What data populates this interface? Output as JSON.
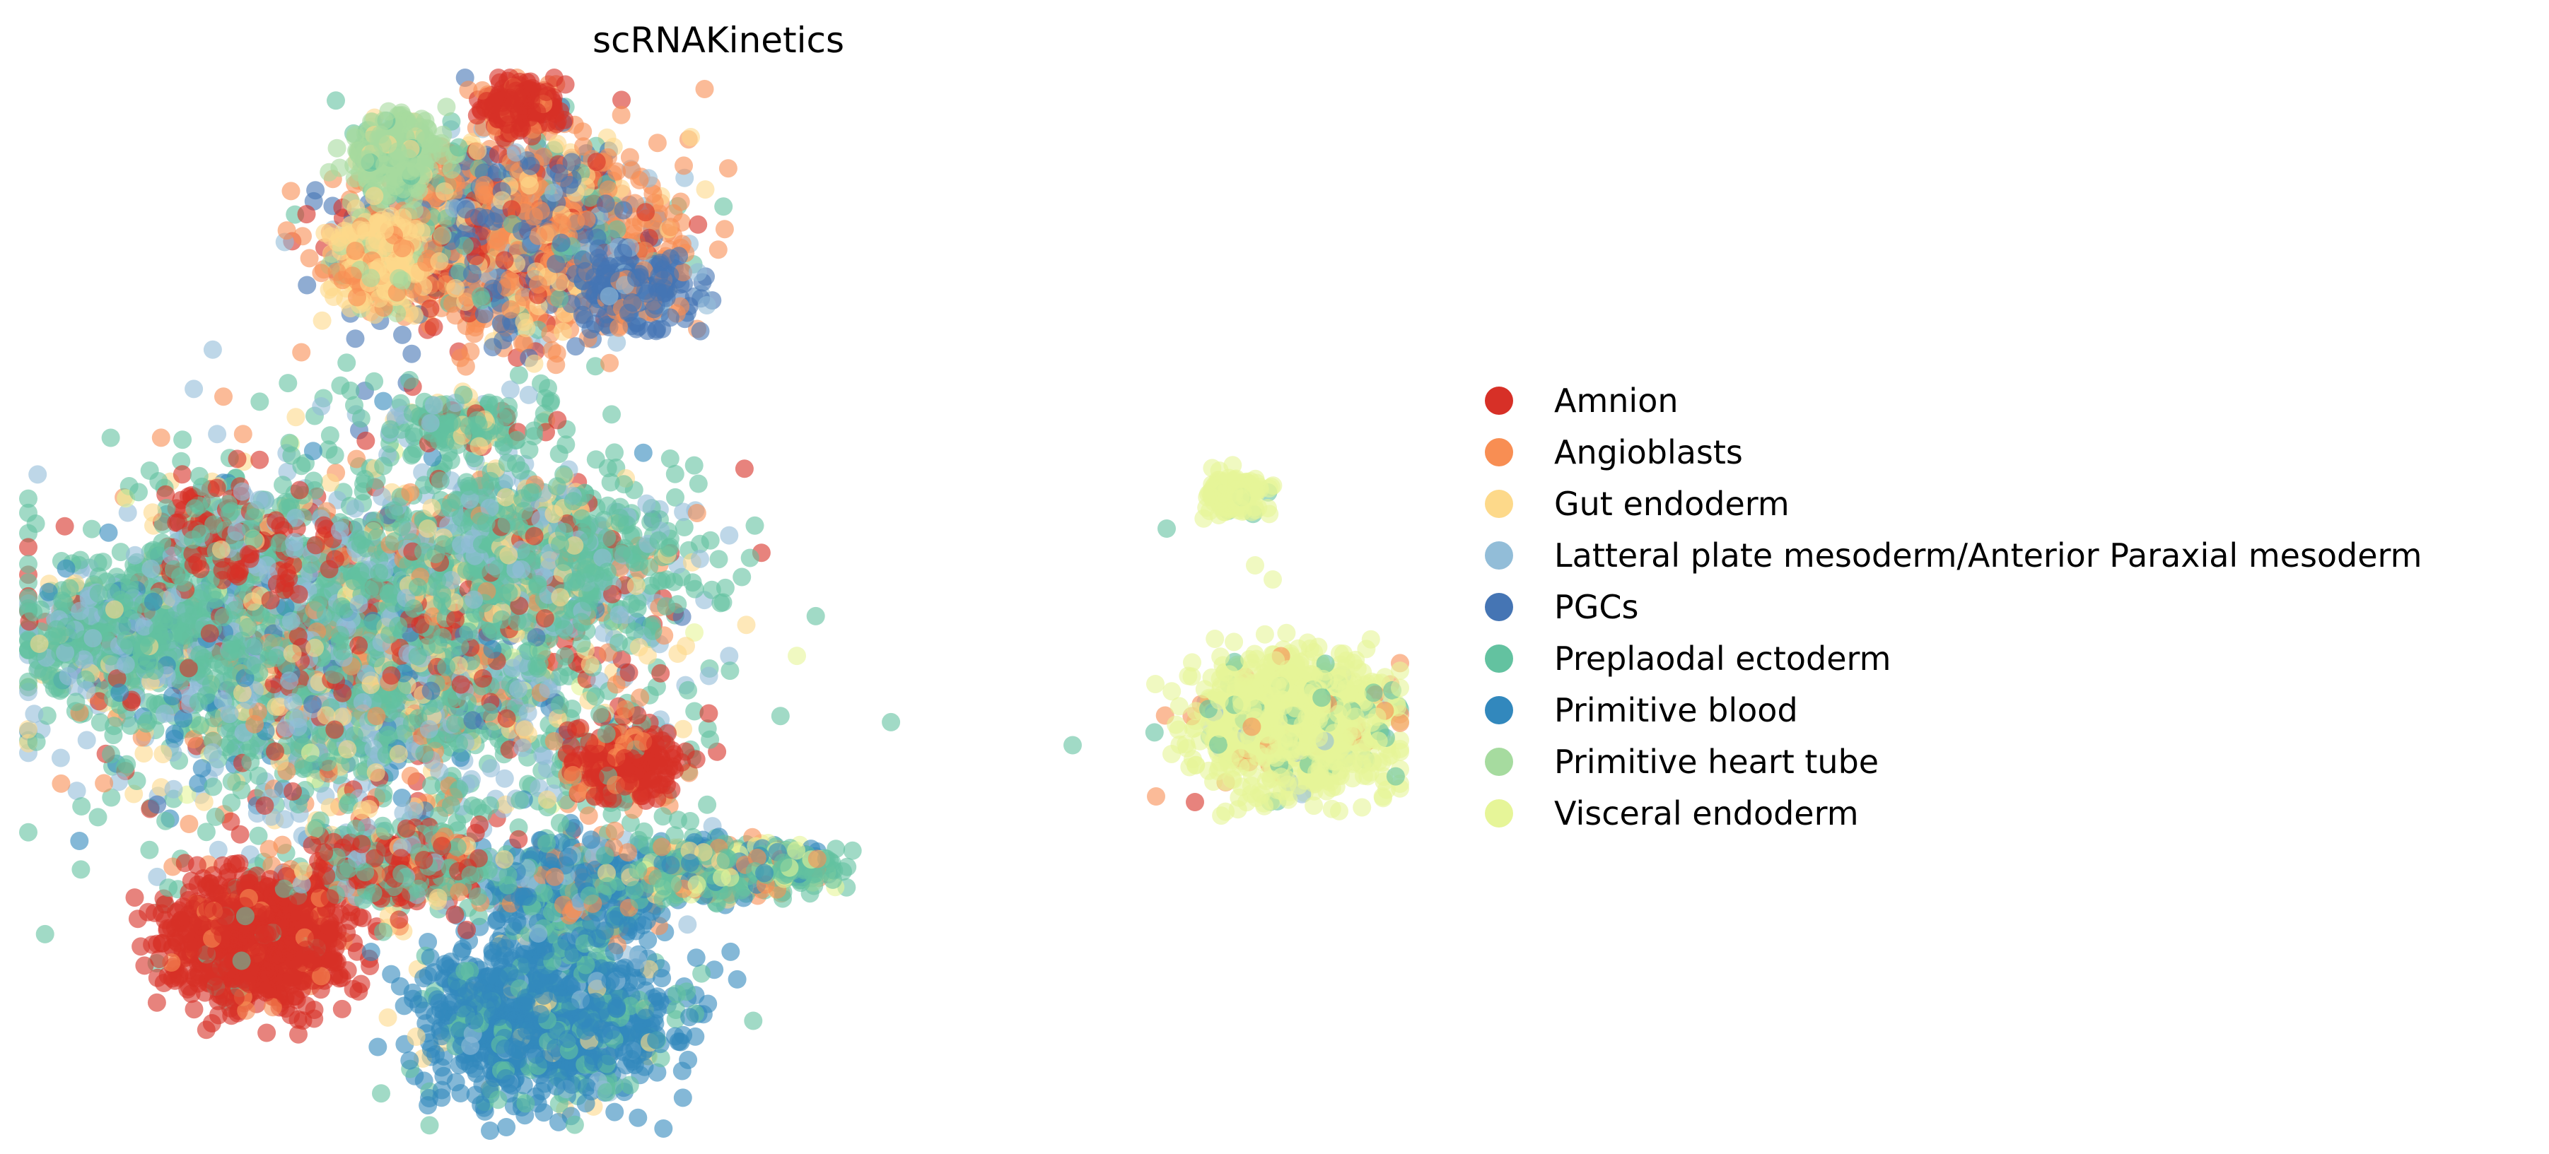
{
  "chart_data": {
    "type": "scatter",
    "title": "scRNAKinetics",
    "xlabel": "",
    "ylabel": "",
    "grid": false,
    "axes_visible": false,
    "legend_position": "right",
    "categories": [
      {
        "name": "Amnion",
        "color": "#d73027"
      },
      {
        "name": "Angioblasts",
        "color": "#f88e53"
      },
      {
        "name": "Gut endoderm",
        "color": "#fdd98a"
      },
      {
        "name": "Latteral plate mesoderm/Anterior Paraxial mesoderm",
        "color": "#92bdd8"
      },
      {
        "name": "PGCs",
        "color": "#4575b4"
      },
      {
        "name": "Preplaodal ectoderm",
        "color": "#63c2a0"
      },
      {
        "name": "Primitive blood",
        "color": "#3288bd"
      },
      {
        "name": "Primitive heart tube",
        "color": "#a6db9f"
      },
      {
        "name": "Visceral endoderm",
        "color": "#e6f598"
      }
    ],
    "clusters": [
      {
        "label": "upper lobe",
        "composition": [
          "Amnion",
          "Angioblasts",
          "Gut endoderm",
          "PGCs",
          "Primitive heart tube",
          "Preplaodal ectoderm"
        ]
      },
      {
        "label": "central body",
        "composition": [
          "Preplaodal ectoderm",
          "Latteral plate mesoderm/Anterior Paraxial mesoderm",
          "Gut endoderm",
          "Amnion",
          "Angioblasts"
        ]
      },
      {
        "label": "lower-left",
        "composition": [
          "Amnion"
        ]
      },
      {
        "label": "lower-center",
        "composition": [
          "Primitive blood",
          "Preplaodal ectoderm"
        ]
      },
      {
        "label": "right arm",
        "composition": [
          "Preplaodal ectoderm",
          "Primitive blood",
          "Angioblasts",
          "Visceral endoderm"
        ]
      },
      {
        "label": "separate right islands",
        "composition": [
          "Visceral endoderm",
          "Preplaodal ectoderm",
          "Angioblasts"
        ]
      }
    ]
  }
}
